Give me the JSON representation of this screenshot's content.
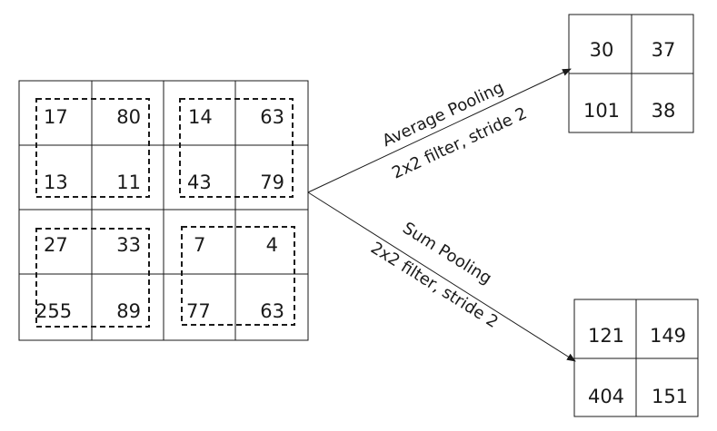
{
  "input_matrix": [
    [
      "17",
      "80",
      "14",
      "63"
    ],
    [
      "13",
      "11",
      "43",
      "79"
    ],
    [
      "27",
      "33",
      "7",
      "4"
    ],
    [
      "255",
      "89",
      "77",
      "63"
    ]
  ],
  "average_pooling": {
    "label_line1": "Average Pooling",
    "label_line2": "2x2 filter, stride 2",
    "output": [
      [
        "30",
        "37"
      ],
      [
        "101",
        "38"
      ]
    ]
  },
  "sum_pooling": {
    "label_line1": "Sum Pooling",
    "label_line2": "2x2 filter, stride 2",
    "output": [
      [
        "121",
        "149"
      ],
      [
        "404",
        "151"
      ]
    ]
  },
  "colors": {
    "stroke": "#1a1a1a",
    "background": "#ffffff"
  }
}
